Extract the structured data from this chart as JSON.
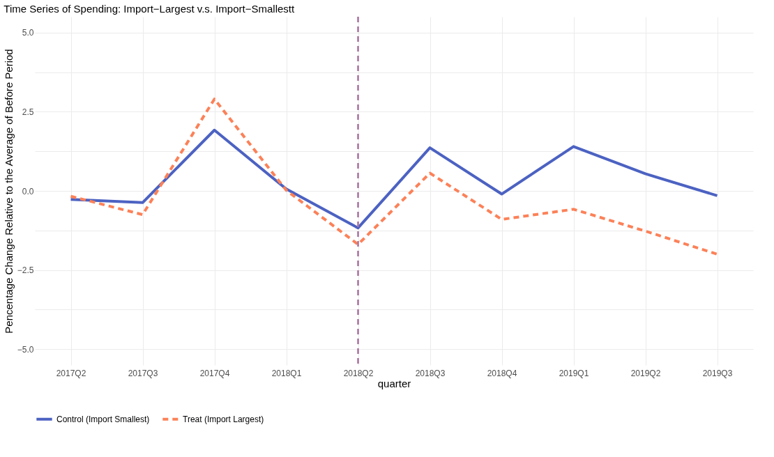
{
  "chart_data": {
    "type": "line",
    "title": "Time Series of Spending: Import−Largest v.s. Import−Smallestt",
    "xlabel": "quarter",
    "ylabel": "Pencentage Change Relative to the Average of Before Period",
    "categories": [
      "2017Q2",
      "2017Q3",
      "2017Q4",
      "2018Q1",
      "2018Q2",
      "2018Q3",
      "2018Q4",
      "2019Q1",
      "2019Q2",
      "2019Q3"
    ],
    "series": [
      {
        "name": "Control (Import Smallest)",
        "color": "#4c62c2",
        "line_style": "solid",
        "values": [
          -0.27,
          -0.37,
          1.92,
          0.06,
          -1.17,
          1.36,
          -0.1,
          1.4,
          0.54,
          -0.15
        ]
      },
      {
        "name": "Treat (Import Largest)",
        "color": "#fc8158",
        "line_style": "dashed",
        "values": [
          -0.17,
          -0.75,
          2.9,
          0.02,
          -1.69,
          0.56,
          -0.9,
          -0.58,
          -1.27,
          -2.0
        ]
      }
    ],
    "ylim": [
      -5.5,
      5.5
    ],
    "yticks": [
      {
        "value": -5,
        "label": "−5.0"
      },
      {
        "value": -3.75,
        "label": null
      },
      {
        "value": -2.5,
        "label": "−2.5"
      },
      {
        "value": -1.25,
        "label": null
      },
      {
        "value": 0,
        "label": "0.0"
      },
      {
        "value": 1.25,
        "label": null
      },
      {
        "value": 2.5,
        "label": "2.5"
      },
      {
        "value": 3.75,
        "label": null
      },
      {
        "value": 5,
        "label": "5.0"
      }
    ],
    "ref_lines": [
      {
        "axis": "x",
        "value": "2018Q2",
        "color": "#a8739f",
        "line_style": "dashed"
      }
    ],
    "grid": true,
    "legend": "bottom"
  }
}
